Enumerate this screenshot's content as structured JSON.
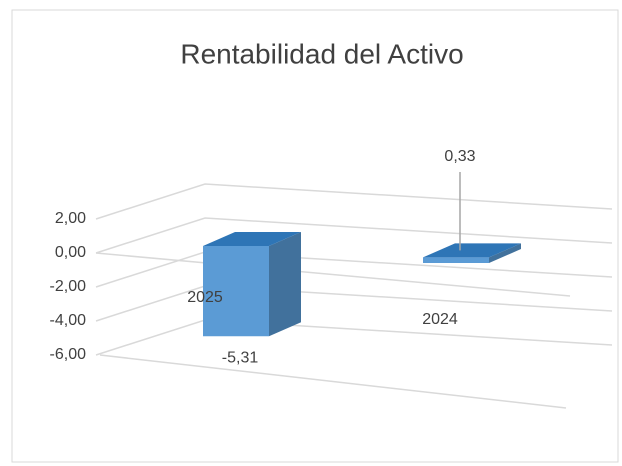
{
  "chart_data": {
    "type": "bar3d",
    "title": "Rentabilidad del Activo",
    "categories": [
      "2025",
      "2024"
    ],
    "values": [
      -5.31,
      0.33
    ],
    "value_labels": [
      "-5,31",
      "0,33"
    ],
    "color": "#5b9bd5",
    "ylim": [
      -6,
      2
    ],
    "yticks": [
      {
        "value": 2,
        "label": "2,00"
      },
      {
        "value": 0,
        "label": "0,00"
      },
      {
        "value": -2,
        "label": "-2,00"
      },
      {
        "value": -4,
        "label": "-4,00"
      },
      {
        "value": -6,
        "label": "-6,00"
      }
    ],
    "grid": true
  }
}
